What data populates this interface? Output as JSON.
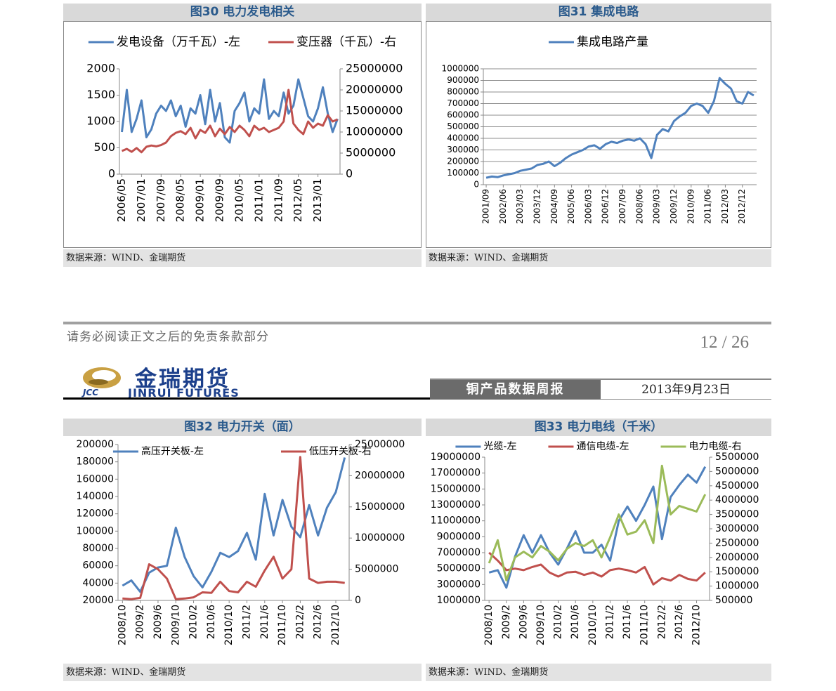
{
  "page": {
    "disclaimer": "请务必阅读正文之后的免责条款部分",
    "page_number": "12 / 26",
    "logo_mark": "JCC",
    "logo_cn": "金瑞期货",
    "logo_en": "JINRUI FUTURES",
    "report_title": "铜产品数据周报",
    "date": "2013年9月23日"
  },
  "chart_data": [
    {
      "type": "line",
      "title": "图30 电力发电相关",
      "source": "数据来源：WIND、金瑞期货",
      "legend": "top",
      "grid": false,
      "categories": [
        "2006/05",
        null,
        null,
        null,
        "2007/01",
        null,
        null,
        null,
        "2007/09",
        null,
        null,
        null,
        "2008/05",
        null,
        null,
        null,
        "2009/01",
        null,
        null,
        null,
        "2009/09",
        null,
        null,
        null,
        "2010/05",
        null,
        null,
        null,
        "2011/01",
        null,
        null,
        null,
        "2011/09",
        null,
        null,
        null,
        "2012/05",
        null,
        null,
        null,
        "2013/01",
        null,
        null,
        null,
        null
      ],
      "ylim": [
        0,
        2000
      ],
      "yticks": [
        0,
        500,
        1000,
        1500,
        2000
      ],
      "y2lim": [
        0,
        25000000
      ],
      "y2ticks": [
        0,
        5000000,
        10000000,
        15000000,
        20000000,
        25000000
      ],
      "series": [
        {
          "name": "发电设备（万千瓦）-左",
          "color": "#4f81bd",
          "values": [
            800,
            1600,
            800,
            1050,
            1400,
            700,
            850,
            1150,
            1300,
            1200,
            1400,
            1100,
            1300,
            900,
            1250,
            1150,
            1500,
            950,
            1600,
            1000,
            1350,
            700,
            600,
            1200,
            1350,
            1550,
            1000,
            1250,
            1150,
            1800,
            1050,
            1200,
            1100,
            1550,
            1150,
            1300,
            1800,
            1450,
            1100,
            1000,
            1250,
            1650,
            1150,
            800,
            1050
          ]
        },
        {
          "name": "变压器（千瓦）-右",
          "color": "#c0504d",
          "axis": "y2",
          "values": [
            5500000,
            6000000,
            5300000,
            6200000,
            5200000,
            6500000,
            6800000,
            6600000,
            6900000,
            7500000,
            9000000,
            9800000,
            10200000,
            9500000,
            11000000,
            8500000,
            10500000,
            9800000,
            11500000,
            9000000,
            10800000,
            9500000,
            11200000,
            10000000,
            11500000,
            10500000,
            9000000,
            11500000,
            10500000,
            11000000,
            10000000,
            10500000,
            11000000,
            12500000,
            20000000,
            12000000,
            10500000,
            9500000,
            12500000,
            11000000,
            12000000,
            11500000,
            14000000,
            12500000,
            13000000
          ]
        }
      ]
    },
    {
      "type": "line",
      "title": "图31 集成电路",
      "source": "数据来源：WIND、金瑞期货",
      "legend": "top",
      "grid": true,
      "categories": [
        "2001/09",
        null,
        null,
        "2002/06",
        null,
        null,
        "2003/03",
        null,
        null,
        "2003/12",
        null,
        null,
        "2004/09",
        null,
        null,
        "2005/06",
        null,
        null,
        "2006/03",
        null,
        null,
        "2006/12",
        null,
        null,
        "2007/09",
        null,
        null,
        "2008/06",
        null,
        null,
        "2009/03",
        null,
        null,
        "2009/12",
        null,
        null,
        "2010/09",
        null,
        null,
        "2011/06",
        null,
        null,
        "2012/03",
        null,
        null,
        "2012/12",
        null,
        null
      ],
      "ylim": [
        0,
        1000000
      ],
      "yticks": [
        0,
        100000,
        200000,
        300000,
        400000,
        500000,
        600000,
        700000,
        800000,
        900000,
        1000000
      ],
      "series": [
        {
          "name": "集成电路产量",
          "color": "#4f81bd",
          "values": [
            60000,
            70000,
            65000,
            80000,
            90000,
            100000,
            120000,
            130000,
            140000,
            170000,
            180000,
            200000,
            160000,
            190000,
            230000,
            260000,
            280000,
            300000,
            330000,
            340000,
            310000,
            350000,
            370000,
            360000,
            380000,
            390000,
            380000,
            400000,
            350000,
            230000,
            430000,
            480000,
            460000,
            550000,
            590000,
            620000,
            680000,
            700000,
            680000,
            620000,
            720000,
            920000,
            870000,
            830000,
            720000,
            700000,
            800000,
            770000
          ]
        }
      ]
    },
    {
      "type": "line",
      "title": "图32 电力开关（面）",
      "source": "数据来源：WIND、金瑞期货",
      "legend": "top",
      "grid": false,
      "categories": [
        "2008/10",
        null,
        "2009/2",
        null,
        "2009/6",
        null,
        "2009/10",
        null,
        "2010/2",
        null,
        "2010/6",
        null,
        "2010/10",
        null,
        "2011/2",
        null,
        "2011/6",
        null,
        "2011/10",
        null,
        "2012/2",
        null,
        "2012/6",
        null,
        "2012/10",
        null
      ],
      "ylim": [
        20000,
        200000
      ],
      "yticks": [
        20000,
        40000,
        60000,
        80000,
        100000,
        120000,
        140000,
        160000,
        180000,
        200000
      ],
      "y2lim": [
        0,
        25000000
      ],
      "y2ticks": [
        0,
        5000000,
        10000000,
        15000000,
        20000000,
        25000000
      ],
      "series": [
        {
          "name": "高压开关板-左",
          "color": "#4f81bd",
          "values": [
            37000,
            43000,
            30000,
            52000,
            58000,
            60000,
            104000,
            70000,
            48000,
            35000,
            53000,
            75000,
            70000,
            77000,
            98000,
            67000,
            143000,
            95000,
            136000,
            105000,
            93000,
            130000,
            95000,
            127000,
            145000,
            185000
          ]
        },
        {
          "name": "低压开关板-右",
          "color": "#c0504d",
          "axis": "y2",
          "values": [
            300000,
            200000,
            400000,
            5800000,
            5000000,
            3500000,
            200000,
            300000,
            500000,
            1300000,
            1200000,
            3000000,
            1500000,
            1300000,
            3000000,
            2200000,
            4800000,
            7000000,
            3500000,
            5000000,
            23000000,
            3500000,
            2800000,
            3000000,
            3000000,
            2800000
          ]
        }
      ]
    },
    {
      "type": "line",
      "title": "图33 电力电线（千米）",
      "source": "数据来源：WIND、金瑞期货",
      "legend": "top",
      "grid": false,
      "categories": [
        "2008/10",
        null,
        "2009/2",
        null,
        "2009/6",
        null,
        "2009/10",
        null,
        "2010/2",
        null,
        "2010/6",
        null,
        "2010/10",
        null,
        "2011/2",
        null,
        "2011/6",
        null,
        "2011/10",
        null,
        "2012/2",
        null,
        "2012/6",
        null,
        "2012/10",
        null
      ],
      "ylim": [
        1000000,
        19000000
      ],
      "yticks": [
        1000000,
        3000000,
        5000000,
        7000000,
        9000000,
        11000000,
        13000000,
        15000000,
        17000000,
        19000000
      ],
      "y2lim": [
        500000,
        5500000
      ],
      "y2ticks": [
        500000,
        1000000,
        1500000,
        2000000,
        2500000,
        3000000,
        3500000,
        4000000,
        4500000,
        5000000,
        5500000
      ],
      "series": [
        {
          "name": "光缆-左",
          "color": "#4f81bd",
          "values": [
            4500000,
            4800000,
            2600000,
            6500000,
            9200000,
            7000000,
            9200000,
            7000000,
            5500000,
            7500000,
            9700000,
            7000000,
            7000000,
            8000000,
            6000000,
            11000000,
            12800000,
            11000000,
            13000000,
            15300000,
            8700000,
            14000000,
            15500000,
            16800000,
            15800000,
            17800000
          ]
        },
        {
          "name": "通信电缆-左",
          "color": "#c0504d",
          "values": [
            7000000,
            6000000,
            4800000,
            5000000,
            4800000,
            5200000,
            5500000,
            4500000,
            4000000,
            4500000,
            4600000,
            4200000,
            4500000,
            4000000,
            4800000,
            5000000,
            4800000,
            4500000,
            5200000,
            3000000,
            3800000,
            3500000,
            4200000,
            3700000,
            3500000,
            4500000
          ]
        },
        {
          "name": "电力电缆-右",
          "color": "#9bbb59",
          "axis": "y2",
          "values": [
            1800000,
            2600000,
            1200000,
            2000000,
            2200000,
            2000000,
            2400000,
            2200000,
            1900000,
            2300000,
            2500000,
            2400000,
            2600000,
            2000000,
            2700000,
            3500000,
            2800000,
            2900000,
            3300000,
            2500000,
            5200000,
            3500000,
            3800000,
            3700000,
            3600000,
            4200000
          ]
        }
      ]
    }
  ]
}
